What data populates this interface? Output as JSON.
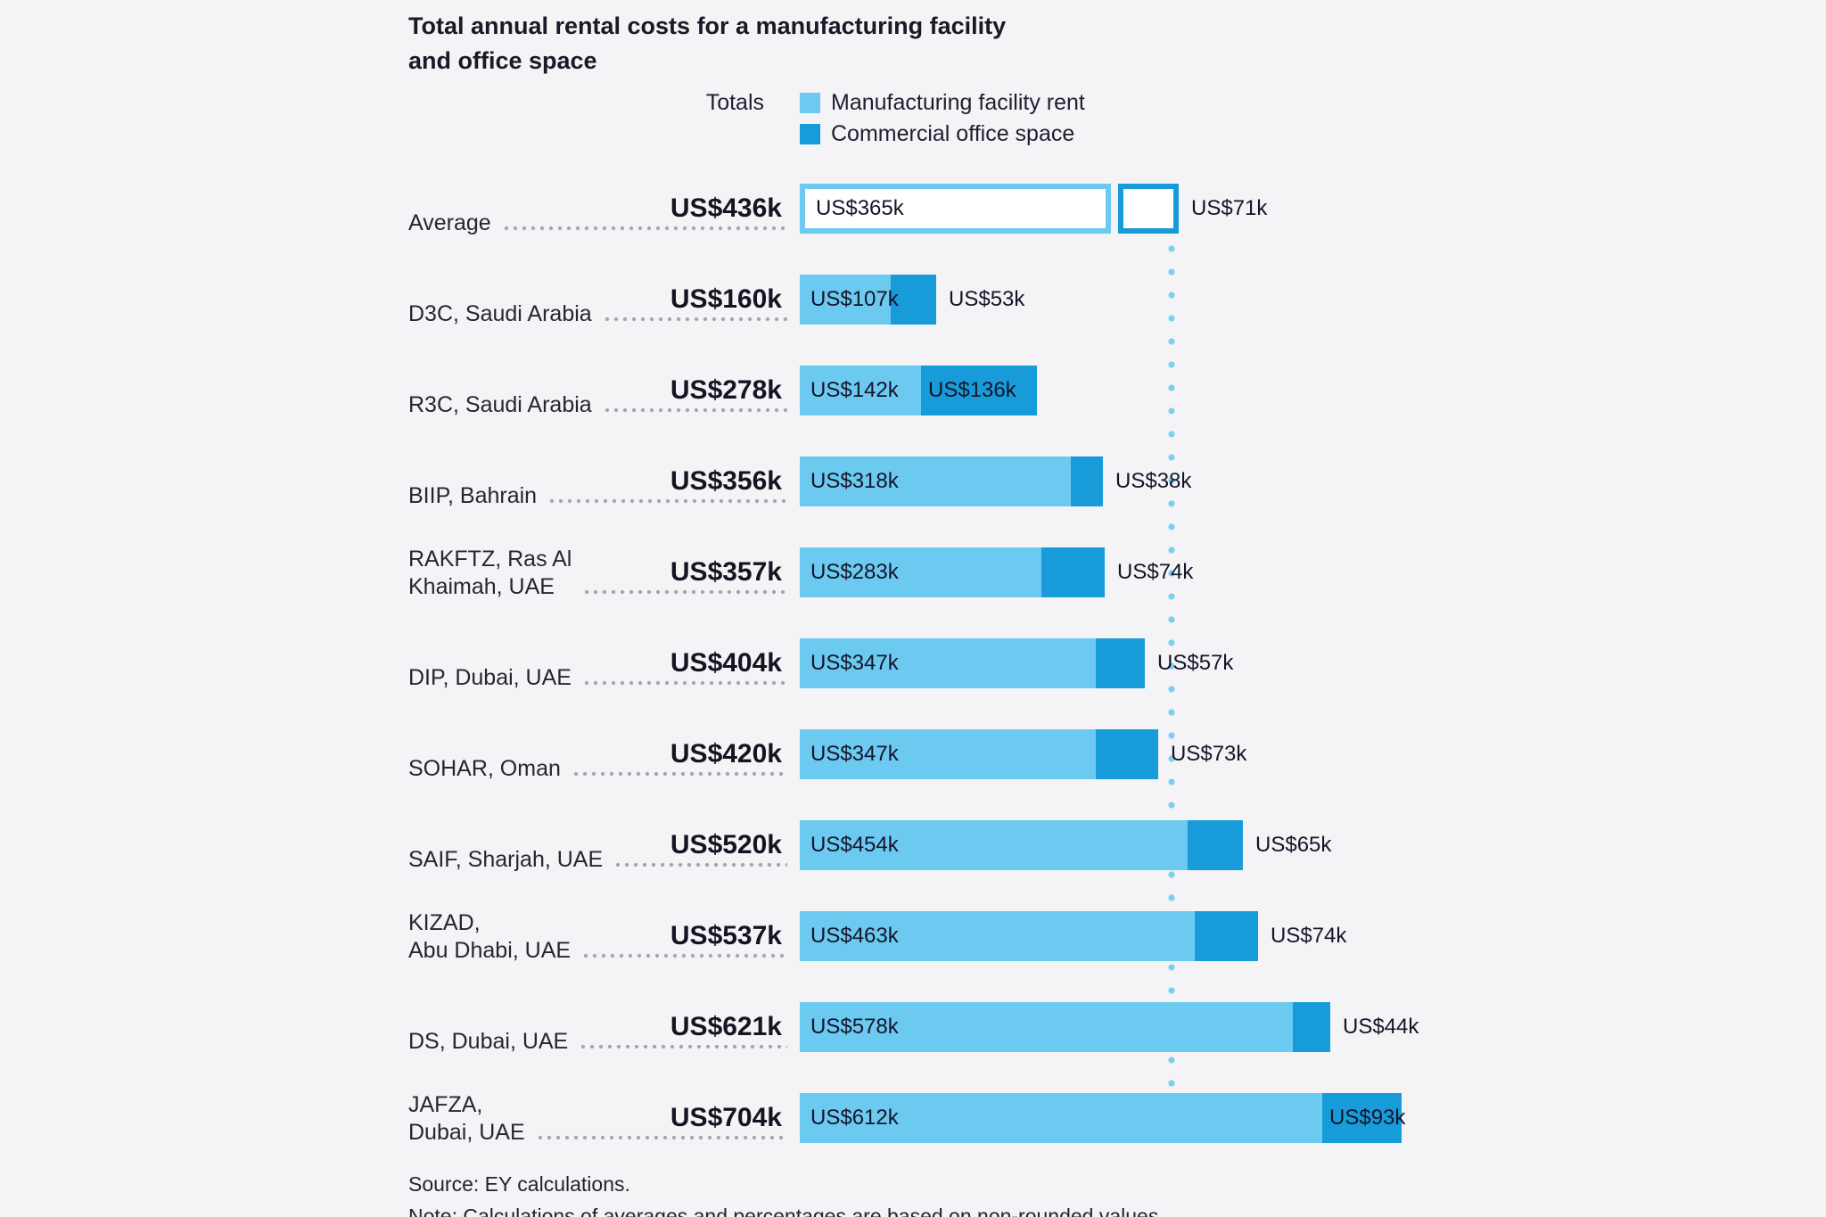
{
  "page": {
    "background": "#f4f4f6"
  },
  "chart_data": {
    "type": "bar",
    "orientation": "horizontal",
    "stacked": true,
    "title_lines": [
      "Total annual rental costs for a manufacturing facility",
      "and office space"
    ],
    "totals_header": "Totals",
    "legend": [
      {
        "name": "Manufacturing facility rent",
        "color": "#6cc9f0"
      },
      {
        "name": "Commercial office space",
        "color": "#189cd9"
      }
    ],
    "value_unit": "US$ thousands per year",
    "axis_max": 704,
    "average_marker_value": 436,
    "rows": [
      {
        "label_lines": [
          "Average"
        ],
        "total_value": 436,
        "total_label": "US$436k",
        "manufacturing_value": 365,
        "manufacturing_label": "US$365k",
        "office_value": 71,
        "office_label": "US$71k",
        "style": "outline",
        "office_label_placement": "outside"
      },
      {
        "label_lines": [
          "D3C, Saudi Arabia"
        ],
        "total_value": 160,
        "total_label": "US$160k",
        "manufacturing_value": 107,
        "manufacturing_label": "US$107k",
        "office_value": 53,
        "office_label": "US$53k",
        "style": "solid",
        "office_label_placement": "outside"
      },
      {
        "label_lines": [
          "R3C, Saudi Arabia"
        ],
        "total_value": 278,
        "total_label": "US$278k",
        "manufacturing_value": 142,
        "manufacturing_label": "US$142k",
        "office_value": 136,
        "office_label": "US$136k",
        "style": "solid",
        "office_label_placement": "inside"
      },
      {
        "label_lines": [
          "BIIP, Bahrain"
        ],
        "total_value": 356,
        "total_label": "US$356k",
        "manufacturing_value": 318,
        "manufacturing_label": "US$318k",
        "office_value": 38,
        "office_label": "US$38k",
        "style": "solid",
        "office_label_placement": "outside"
      },
      {
        "label_lines": [
          "RAKFTZ, Ras Al",
          "Khaimah, UAE"
        ],
        "total_value": 357,
        "total_label": "US$357k",
        "manufacturing_value": 283,
        "manufacturing_label": "US$283k",
        "office_value": 74,
        "office_label": "US$74k",
        "style": "solid",
        "office_label_placement": "outside"
      },
      {
        "label_lines": [
          "DIP, Dubai, UAE"
        ],
        "total_value": 404,
        "total_label": "US$404k",
        "manufacturing_value": 347,
        "manufacturing_label": "US$347k",
        "office_value": 57,
        "office_label": "US$57k",
        "style": "solid",
        "office_label_placement": "outside"
      },
      {
        "label_lines": [
          "SOHAR, Oman"
        ],
        "total_value": 420,
        "total_label": "US$420k",
        "manufacturing_value": 347,
        "manufacturing_label": "US$347k",
        "office_value": 73,
        "office_label": "US$73k",
        "style": "solid",
        "office_label_placement": "outside"
      },
      {
        "label_lines": [
          "SAIF, Sharjah, UAE"
        ],
        "total_value": 520,
        "total_label": "US$520k",
        "manufacturing_value": 454,
        "manufacturing_label": "US$454k",
        "office_value": 65,
        "office_label": "US$65k",
        "style": "solid",
        "office_label_placement": "outside"
      },
      {
        "label_lines": [
          "KIZAD,",
          "Abu Dhabi, UAE"
        ],
        "total_value": 537,
        "total_label": "US$537k",
        "manufacturing_value": 463,
        "manufacturing_label": "US$463k",
        "office_value": 74,
        "office_label": "US$74k",
        "style": "solid",
        "office_label_placement": "outside"
      },
      {
        "label_lines": [
          "DS, Dubai, UAE"
        ],
        "total_value": 621,
        "total_label": "US$621k",
        "manufacturing_value": 578,
        "manufacturing_label": "US$578k",
        "office_value": 44,
        "office_label": "US$44k",
        "style": "solid",
        "office_label_placement": "outside"
      },
      {
        "label_lines": [
          "JAFZA,",
          "Dubai, UAE"
        ],
        "total_value": 704,
        "total_label": "US$704k",
        "manufacturing_value": 612,
        "manufacturing_label": "US$612k",
        "office_value": 93,
        "office_label": "US$93k",
        "style": "solid",
        "office_label_placement": "inside"
      }
    ],
    "source": "Source: EY calculations.",
    "note": "Note: Calculations of averages and percentages are based on non-rounded values.",
    "colors": {
      "manufacturing": "#6cc9f0",
      "office": "#189cd9",
      "average_line": "#7ad0f2",
      "leader_dots": "#a4a4ae",
      "text": "#20202e"
    }
  }
}
